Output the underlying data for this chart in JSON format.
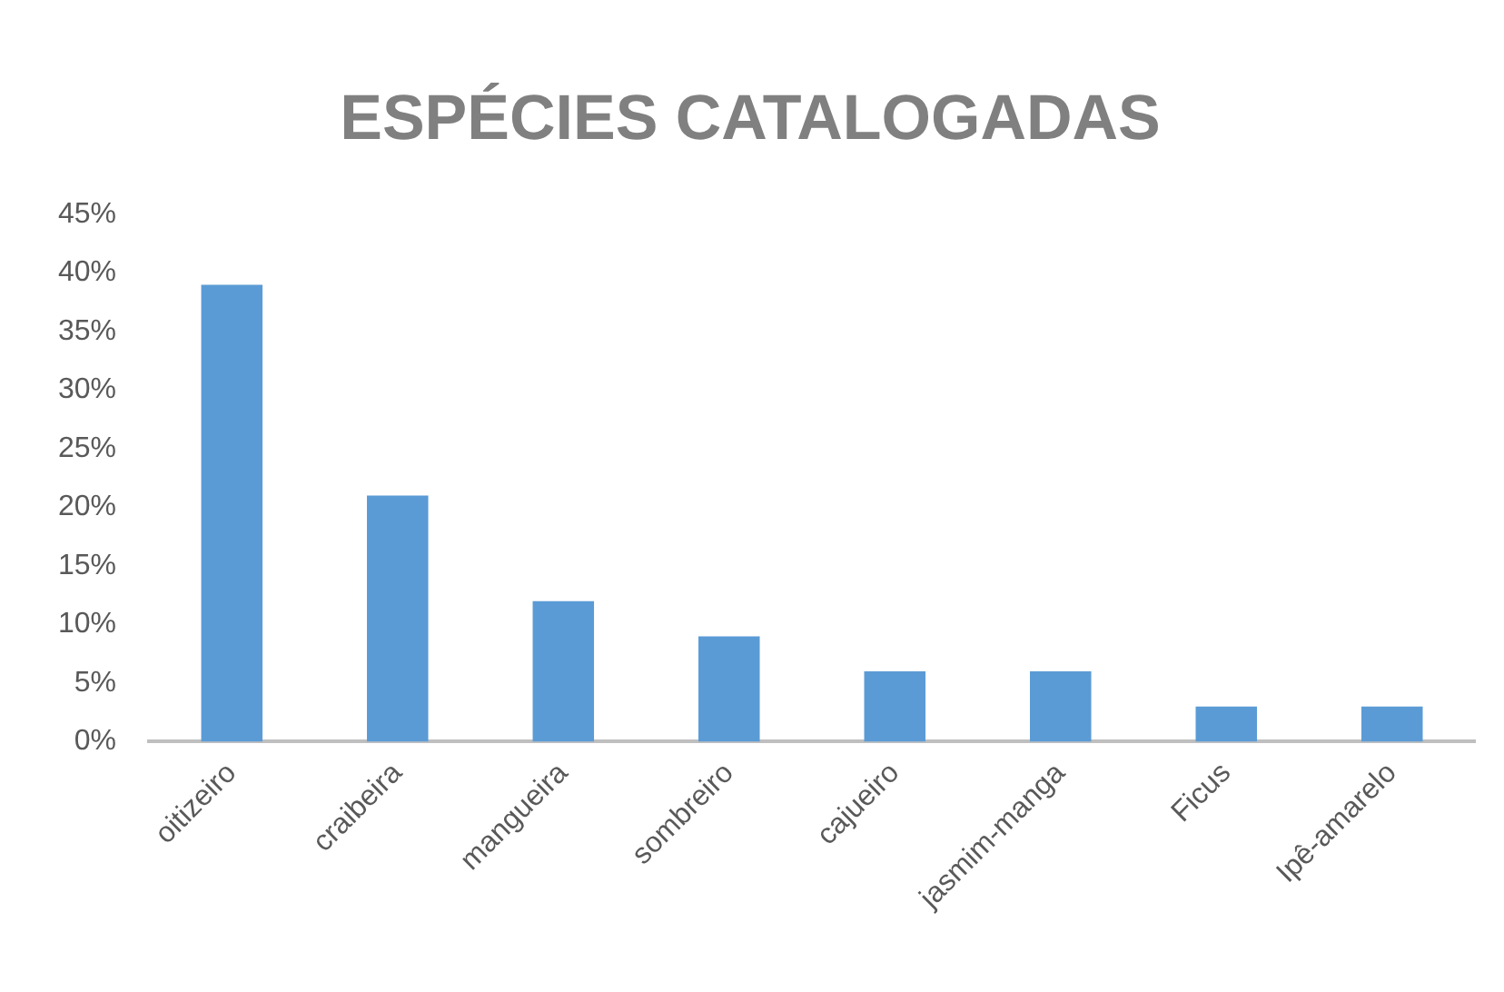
{
  "chart_data": {
    "type": "bar",
    "title": "ESPÉCIES CATALOGADAS",
    "categories": [
      "oitizeiro",
      "craibeira",
      "mangueira",
      "sombreiro",
      "cajueiro",
      "jasmim-manga",
      "Ficus",
      "Ipê-amarelo"
    ],
    "values": [
      39,
      21,
      12,
      9,
      6,
      6,
      3,
      3
    ],
    "color": "#5b9bd5",
    "ylim": [
      0,
      45
    ],
    "yticks": [
      {
        "value": 0,
        "label": "0%"
      },
      {
        "value": 5,
        "label": "5%"
      },
      {
        "value": 10,
        "label": "10%"
      },
      {
        "value": 15,
        "label": "15%"
      },
      {
        "value": 20,
        "label": "20%"
      },
      {
        "value": 25,
        "label": "25%"
      },
      {
        "value": 30,
        "label": "30%"
      },
      {
        "value": 35,
        "label": "35%"
      },
      {
        "value": 40,
        "label": "40%"
      },
      {
        "value": 45,
        "label": "45%"
      }
    ],
    "grid": false,
    "legend": false
  }
}
